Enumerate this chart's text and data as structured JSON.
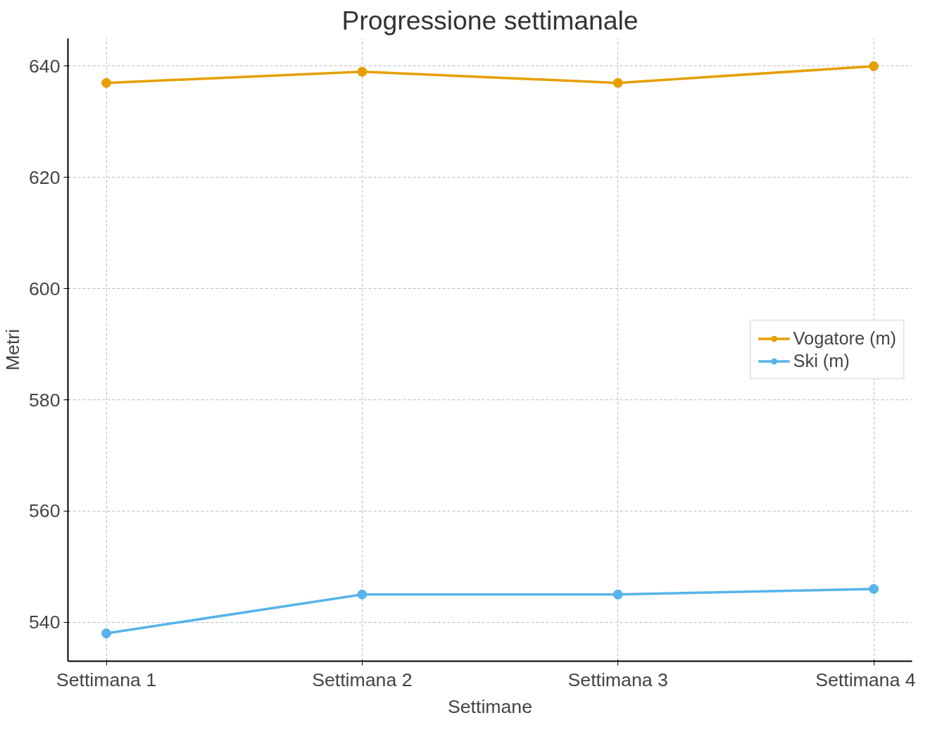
{
  "chart_data": {
    "type": "line",
    "title": "Progressione settimanale",
    "xlabel": "Settimane",
    "ylabel": "Metri",
    "categories": [
      "Settimana 1",
      "Settimana 2",
      "Settimana 3",
      "Settimana 4"
    ],
    "series": [
      {
        "name": "Vogatore (m)",
        "color": "#e69f00",
        "values": [
          637,
          639,
          637,
          640
        ]
      },
      {
        "name": "Ski (m)",
        "color": "#56b4e9",
        "values": [
          538,
          545,
          545,
          546
        ]
      }
    ],
    "ylim": [
      533,
      645
    ],
    "yticks": [
      540,
      560,
      580,
      600,
      620,
      640
    ],
    "grid": true,
    "legend": "right",
    "marker": "circle",
    "line_style": "solid"
  }
}
